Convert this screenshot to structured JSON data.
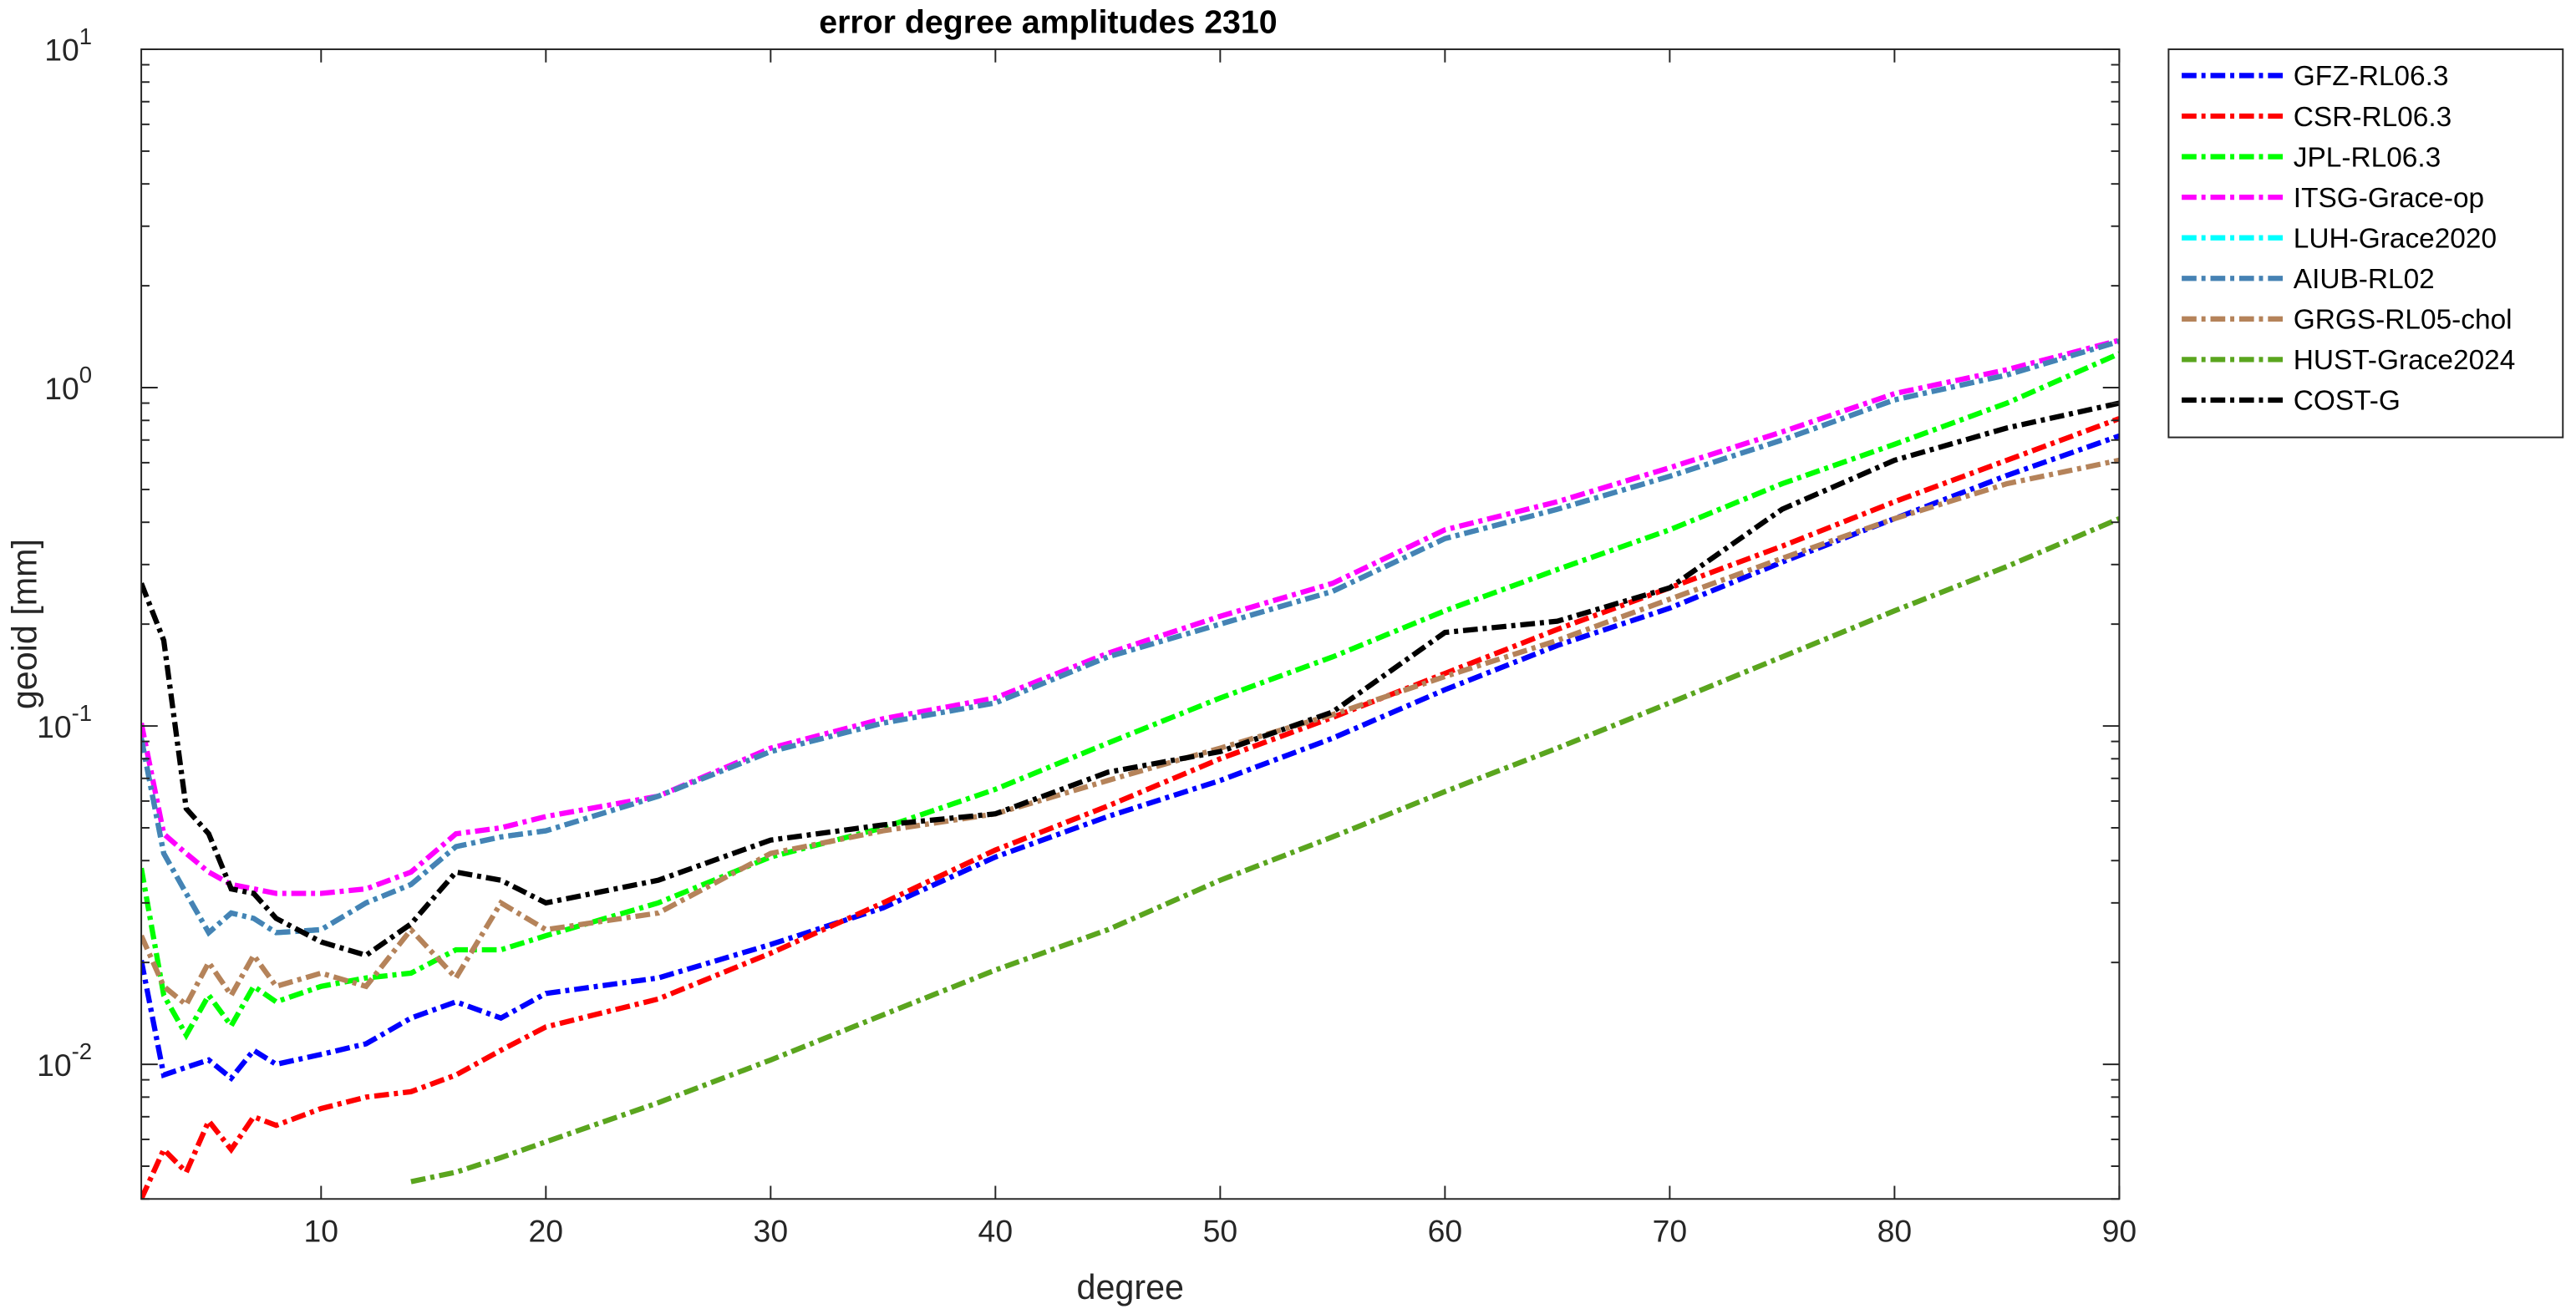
{
  "chart_data": {
    "type": "line",
    "title": "error degree amplitudes 2310",
    "xlabel": "degree",
    "ylabel": "geoid [mm]",
    "x": [
      2,
      3,
      4,
      5,
      6,
      7,
      8,
      10,
      12,
      14,
      16,
      18,
      20,
      25,
      30,
      35,
      40,
      45,
      50,
      55,
      60,
      65,
      70,
      75,
      80,
      85,
      90
    ],
    "xlim": [
      2,
      90
    ],
    "xticks": [
      10,
      20,
      30,
      40,
      50,
      60,
      70,
      80,
      90
    ],
    "ylim": [
      0.004,
      10
    ],
    "yscale": "log",
    "yticks": [
      {
        "value": 0.01,
        "label": "10",
        "exponent": "-2"
      },
      {
        "value": 0.1,
        "label": "10",
        "exponent": "-1"
      },
      {
        "value": 1,
        "label": "10",
        "exponent": "0"
      },
      {
        "value": 10,
        "label": "10",
        "exponent": "1"
      }
    ],
    "legend": "northeastoutside",
    "grid": false,
    "series": [
      {
        "name": "GFZ-RL06.3",
        "color": "#0000ff",
        "values": [
          0.0203,
          0.0093,
          0.0098,
          0.0103,
          0.0091,
          0.011,
          0.01,
          0.0107,
          0.0115,
          0.0137,
          0.0153,
          0.0137,
          0.0162,
          0.018,
          0.0226,
          0.029,
          0.041,
          0.054,
          0.069,
          0.092,
          0.128,
          0.173,
          0.223,
          0.305,
          0.41,
          0.55,
          0.72
        ]
      },
      {
        "name": "CSR-RL06.3",
        "color": "#ff0000",
        "values": [
          0.004,
          0.0056,
          0.0048,
          0.0068,
          0.0056,
          0.007,
          0.0066,
          0.0074,
          0.008,
          0.0083,
          0.0093,
          0.011,
          0.0129,
          0.0156,
          0.0213,
          0.03,
          0.043,
          0.058,
          0.08,
          0.106,
          0.143,
          0.193,
          0.256,
          0.34,
          0.46,
          0.61,
          0.81
        ]
      },
      {
        "name": "JPL-RL06.3",
        "color": "#00ff00",
        "values": [
          0.038,
          0.016,
          0.0122,
          0.016,
          0.013,
          0.017,
          0.0153,
          0.017,
          0.018,
          0.0186,
          0.0218,
          0.0218,
          0.024,
          0.03,
          0.041,
          0.05,
          0.065,
          0.089,
          0.121,
          0.16,
          0.219,
          0.29,
          0.38,
          0.52,
          0.68,
          0.9,
          1.26
        ]
      },
      {
        "name": "ITSG-Grace-op",
        "color": "#ff00ff",
        "values": [
          0.102,
          0.048,
          0.042,
          0.037,
          0.034,
          0.033,
          0.032,
          0.032,
          0.033,
          0.037,
          0.048,
          0.05,
          0.054,
          0.062,
          0.086,
          0.105,
          0.121,
          0.164,
          0.211,
          0.264,
          0.38,
          0.46,
          0.58,
          0.74,
          0.96,
          1.13,
          1.38
        ]
      },
      {
        "name": "LUH-Grace2020",
        "color": "#00ffff",
        "values": [
          0.092,
          0.042,
          0.032,
          0.0245,
          0.028,
          0.027,
          0.0245,
          0.025,
          0.03,
          0.034,
          0.044,
          0.047,
          0.049,
          0.062,
          0.084,
          0.102,
          0.117,
          0.16,
          0.2,
          0.25,
          0.358,
          0.437,
          0.547,
          0.7,
          0.92,
          1.09,
          1.37
        ]
      },
      {
        "name": "AIUB-RL02",
        "color": "#4682b4",
        "values": [
          0.092,
          0.042,
          0.032,
          0.0245,
          0.028,
          0.027,
          0.0245,
          0.025,
          0.03,
          0.034,
          0.044,
          0.047,
          0.049,
          0.062,
          0.084,
          0.102,
          0.117,
          0.16,
          0.2,
          0.25,
          0.358,
          0.437,
          0.547,
          0.7,
          0.92,
          1.09,
          1.37
        ]
      },
      {
        "name": "GRGS-RL05-chol",
        "color": "#b5835a",
        "values": [
          0.024,
          0.017,
          0.015,
          0.02,
          0.016,
          0.021,
          0.017,
          0.0186,
          0.017,
          0.025,
          0.018,
          0.03,
          0.025,
          0.028,
          0.042,
          0.049,
          0.055,
          0.069,
          0.086,
          0.108,
          0.14,
          0.179,
          0.237,
          0.313,
          0.41,
          0.52,
          0.61
        ]
      },
      {
        "name": "HUST-Grace2024",
        "color": "#5aa51e",
        "values": [
          null,
          null,
          null,
          null,
          null,
          null,
          null,
          null,
          null,
          0.0045,
          0.0048,
          0.0053,
          0.0059,
          0.0077,
          0.0103,
          0.014,
          0.019,
          0.025,
          0.035,
          0.047,
          0.064,
          0.086,
          0.117,
          0.16,
          0.219,
          0.296,
          0.41
        ]
      },
      {
        "name": "COST-G",
        "color": "#000000",
        "values": [
          0.264,
          0.179,
          0.057,
          0.048,
          0.033,
          0.032,
          0.027,
          0.023,
          0.021,
          0.026,
          0.037,
          0.035,
          0.03,
          0.035,
          0.046,
          0.051,
          0.055,
          0.073,
          0.084,
          0.11,
          0.189,
          0.204,
          0.256,
          0.437,
          0.61,
          0.76,
          0.9
        ]
      }
    ]
  }
}
